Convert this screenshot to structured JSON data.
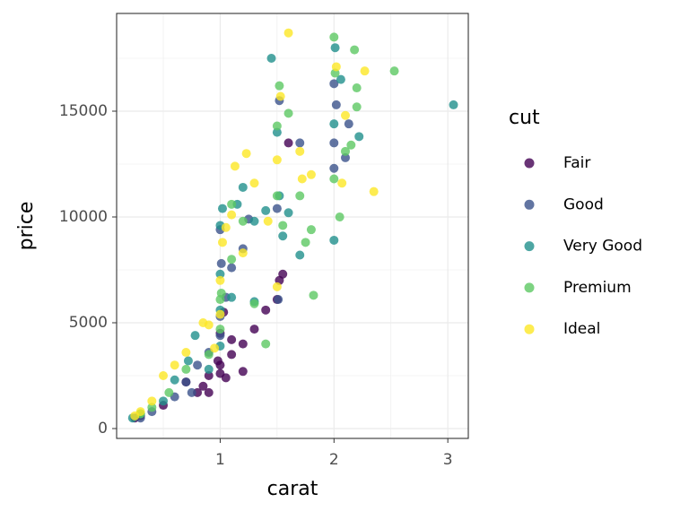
{
  "chart_data": {
    "type": "scatter",
    "x_label": "carat",
    "y_label": "price",
    "legend_title": "cut",
    "xlim": [
      0.09,
      3.18
    ],
    "ylim": [
      -466,
      19619
    ],
    "xticks": [
      1,
      2,
      3
    ],
    "yticks": [
      0,
      5000,
      10000,
      15000
    ],
    "x_minor_grid": [
      0.5,
      1.5,
      2.5
    ],
    "y_minor_grid": [
      2500,
      7500,
      12500,
      17500
    ],
    "grid": true,
    "legend": "right",
    "series": [
      {
        "name": "Fair",
        "color": "#440154",
        "x": [
          0.9,
          1.0,
          1.05,
          1.2,
          0.8,
          0.85,
          1.0,
          1.1,
          1.2,
          1.3,
          1.5,
          1.55,
          1.6,
          0.25,
          0.3,
          0.5,
          0.7,
          1.0,
          1.03,
          1.1,
          1.4,
          0.9,
          1.52,
          0.98
        ],
        "y": [
          1700,
          2600,
          2400,
          2700,
          1700,
          2000,
          3000,
          3500,
          4000,
          4700,
          6100,
          7300,
          13500,
          500,
          600,
          1100,
          2200,
          4500,
          5500,
          4200,
          5600,
          2500,
          7000,
          3200
        ]
      },
      {
        "name": "Good",
        "color": "#3b528b",
        "x": [
          0.3,
          0.4,
          0.6,
          0.7,
          0.8,
          0.9,
          1.0,
          1.0,
          1.05,
          1.1,
          1.2,
          1.25,
          1.5,
          1.52,
          2.0,
          2.0,
          2.0,
          2.02,
          2.13,
          2.1,
          1.0,
          1.51,
          0.75,
          1.7,
          1.01
        ],
        "y": [
          500,
          800,
          1500,
          2200,
          3000,
          3600,
          4400,
          5300,
          6200,
          7600,
          8500,
          9900,
          10400,
          15500,
          16300,
          13500,
          12300,
          15300,
          14400,
          12800,
          9400,
          6100,
          1700,
          13500,
          7800
        ]
      },
      {
        "name": "Very Good",
        "color": "#21908c",
        "x": [
          0.23,
          0.3,
          0.5,
          0.6,
          0.72,
          0.78,
          1.0,
          1.0,
          1.0,
          1.0,
          1.02,
          1.15,
          1.2,
          1.3,
          1.45,
          1.5,
          1.52,
          1.55,
          1.6,
          1.7,
          2.0,
          2.01,
          2.06,
          2.22,
          3.05,
          1.1,
          0.9,
          1.3,
          1.4,
          2.0
        ],
        "y": [
          500,
          700,
          1300,
          2300,
          3200,
          4400,
          3900,
          5600,
          7300,
          9600,
          10400,
          10600,
          11400,
          9800,
          17500,
          14000,
          11000,
          9100,
          10200,
          8200,
          8900,
          18000,
          16500,
          13800,
          15300,
          6200,
          2800,
          6000,
          10300,
          14400
        ]
      },
      {
        "name": "Premium",
        "color": "#5dc863",
        "x": [
          0.3,
          0.4,
          0.55,
          0.7,
          0.9,
          1.0,
          1.0,
          1.01,
          1.1,
          1.2,
          1.3,
          1.4,
          1.5,
          1.5,
          1.52,
          1.6,
          1.7,
          1.75,
          1.8,
          1.82,
          2.0,
          2.01,
          2.0,
          2.1,
          2.15,
          2.2,
          2.2,
          2.53,
          2.18,
          2.05,
          1.1,
          1.55
        ],
        "y": [
          700,
          1000,
          1700,
          2800,
          3500,
          4700,
          6100,
          6400,
          8000,
          9800,
          5900,
          4000,
          11000,
          14300,
          16200,
          14900,
          11000,
          8800,
          9400,
          6300,
          18500,
          16800,
          11800,
          13100,
          13400,
          15200,
          16100,
          16900,
          17900,
          10000,
          10600,
          9600
        ]
      },
      {
        "name": "Ideal",
        "color": "#fde725",
        "x": [
          0.25,
          0.3,
          0.4,
          0.5,
          0.6,
          0.7,
          0.85,
          0.9,
          1.0,
          1.0,
          1.02,
          1.05,
          1.1,
          1.13,
          1.23,
          1.3,
          1.42,
          1.5,
          1.53,
          1.6,
          1.7,
          1.72,
          1.8,
          2.02,
          2.07,
          2.1,
          2.27,
          2.35,
          1.5,
          0.95,
          1.2
        ],
        "y": [
          600,
          800,
          1300,
          2500,
          3000,
          3600,
          5000,
          4900,
          5400,
          7000,
          8800,
          9500,
          10100,
          12400,
          13000,
          11600,
          9800,
          12700,
          15700,
          18700,
          13100,
          11800,
          12000,
          17100,
          11600,
          14800,
          16900,
          11200,
          6700,
          3800,
          8300
        ]
      }
    ]
  }
}
